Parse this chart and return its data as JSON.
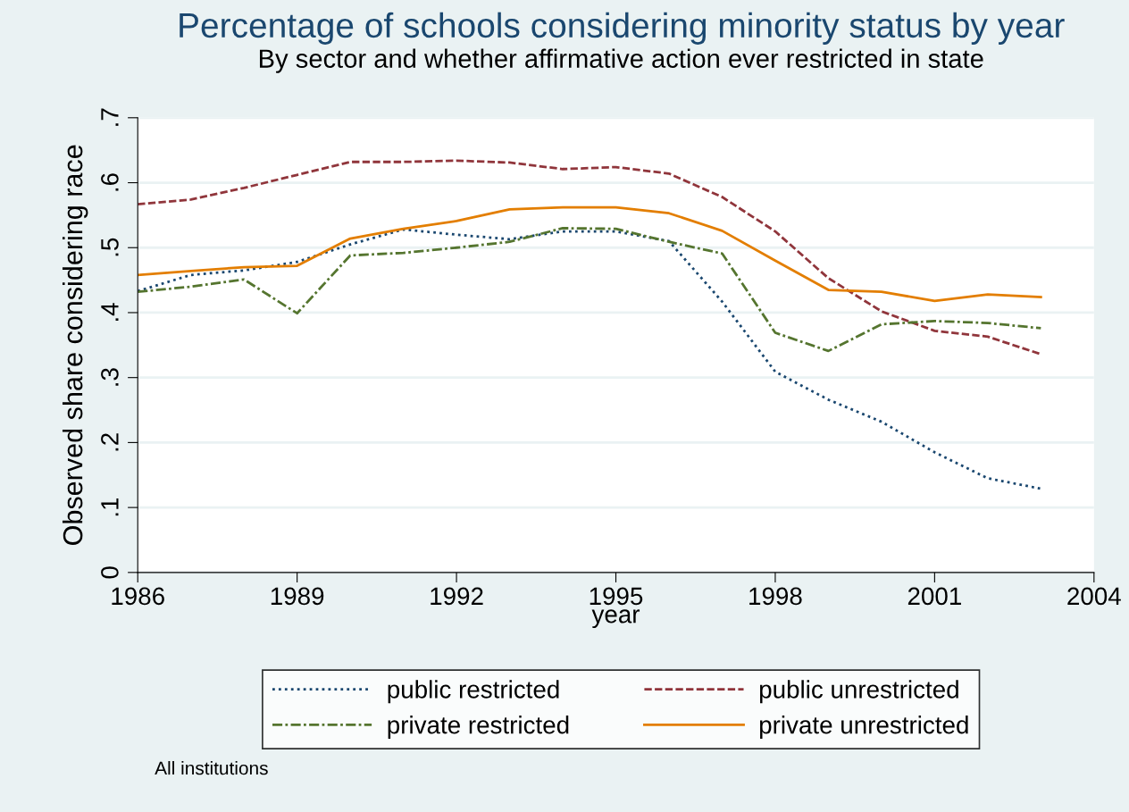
{
  "chart_data": {
    "type": "line",
    "title": "Percentage of schools considering minority status by year",
    "subtitle": "By sector and whether affirmative action ever restricted in state",
    "xlabel": "year",
    "ylabel": "Observed share considering race",
    "x": [
      1986,
      1987,
      1988,
      1989,
      1990,
      1991,
      1992,
      1993,
      1994,
      1995,
      1996,
      1997,
      1998,
      1999,
      2000,
      2001,
      2002,
      2003
    ],
    "series": [
      {
        "name": "public restricted",
        "color": "#1a476f",
        "line_style": "dotted",
        "values": [
          0.433,
          0.458,
          0.465,
          0.478,
          0.505,
          0.528,
          0.52,
          0.513,
          0.525,
          0.525,
          0.51,
          0.417,
          0.309,
          0.266,
          0.232,
          0.185,
          0.145,
          0.129
        ]
      },
      {
        "name": "public unrestricted",
        "color": "#90353b",
        "line_style": "dashed",
        "values": [
          0.567,
          0.574,
          0.592,
          0.612,
          0.632,
          0.632,
          0.634,
          0.631,
          0.621,
          0.624,
          0.614,
          0.578,
          0.525,
          0.453,
          0.402,
          0.372,
          0.363,
          0.336
        ]
      },
      {
        "name": "private restricted",
        "color": "#55752f",
        "line_style": "dashdot",
        "values": [
          0.432,
          0.44,
          0.451,
          0.399,
          0.488,
          0.492,
          0.5,
          0.509,
          0.53,
          0.529,
          0.509,
          0.491,
          0.369,
          0.341,
          0.382,
          0.387,
          0.384,
          0.376
        ]
      },
      {
        "name": "private unrestricted",
        "color": "#e37e00",
        "line_style": "solid",
        "values": [
          0.458,
          0.464,
          0.47,
          0.472,
          0.514,
          0.529,
          0.541,
          0.559,
          0.562,
          0.562,
          0.553,
          0.526,
          0.48,
          0.435,
          0.432,
          0.418,
          0.428,
          0.424
        ]
      }
    ],
    "xlim": [
      1986,
      2004
    ],
    "xticks": [
      1986,
      1989,
      1992,
      1995,
      1998,
      2001,
      2004
    ],
    "ylim": [
      0,
      0.7
    ],
    "yticks": [
      {
        "value": 0,
        "label": "0"
      },
      {
        "value": 0.1,
        "label": ".1"
      },
      {
        "value": 0.2,
        "label": ".2"
      },
      {
        "value": 0.3,
        "label": ".3"
      },
      {
        "value": 0.4,
        "label": ".4"
      },
      {
        "value": 0.5,
        "label": ".5"
      },
      {
        "value": 0.6,
        "label": ".6"
      },
      {
        "value": 0.7,
        "label": ".7"
      }
    ],
    "grid": "y",
    "legend": "bottom",
    "marker": "none",
    "annotations": [
      "All institutions"
    ]
  }
}
